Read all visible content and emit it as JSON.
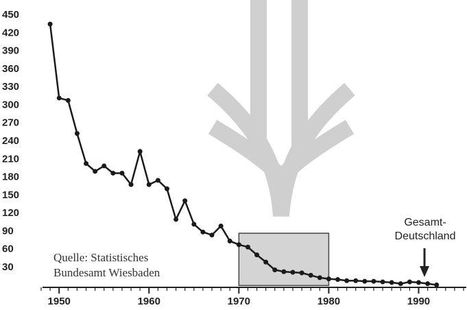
{
  "chart_data": {
    "type": "line",
    "x": [
      1949,
      1950,
      1951,
      1952,
      1953,
      1954,
      1955,
      1956,
      1957,
      1958,
      1959,
      1960,
      1961,
      1962,
      1963,
      1964,
      1965,
      1966,
      1967,
      1968,
      1969,
      1970,
      1971,
      1972,
      1973,
      1974,
      1975,
      1976,
      1977,
      1978,
      1979,
      1980,
      1981,
      1982,
      1983,
      1984,
      1985,
      1986,
      1987,
      1988,
      1989,
      1990,
      1991,
      1992
    ],
    "series": [
      {
        "color": "#1a1a1a",
        "values": [
          435,
          312,
          308,
          253,
          203,
          190,
          199,
          187,
          187,
          168,
          223,
          168,
          175,
          161,
          110,
          141,
          102,
          89,
          84,
          99,
          74,
          68,
          64,
          51,
          39,
          26,
          23,
          22,
          21,
          17,
          13,
          11,
          10,
          8,
          8,
          7,
          7,
          6,
          5,
          3,
          6,
          5,
          3,
          1
        ]
      }
    ],
    "xlim": [
      1948,
      1995
    ],
    "xticks": [
      1950,
      1960,
      1970,
      1980,
      1990
    ],
    "ylim": [
      0,
      450
    ],
    "yticks": [
      30,
      60,
      90,
      120,
      150,
      180,
      210,
      240,
      270,
      300,
      330,
      360,
      390,
      420,
      450
    ],
    "highlight_x": [
      1970,
      1980
    ],
    "highlight_y": [
      0,
      87
    ],
    "annotations": [
      [
        "Gesamt-",
        "Deutschland"
      ],
      [
        "Quelle: Statistisches",
        "Bundesamt Wiesbaden"
      ]
    ]
  }
}
